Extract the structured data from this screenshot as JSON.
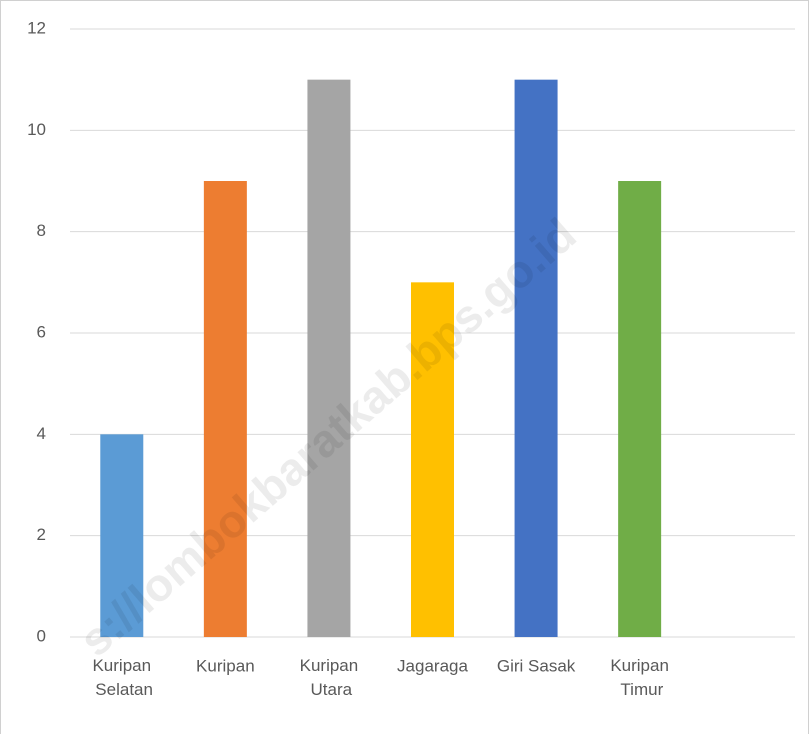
{
  "chart_data": {
    "type": "bar",
    "categories": [
      "Kuripan Selatan",
      "Kuripan",
      "Kuripan Utara",
      "Jagaraga",
      "Giri Sasak",
      "Kuripan Timur",
      null
    ],
    "values": [
      4,
      9,
      11,
      7,
      11,
      9,
      null
    ],
    "colors": [
      "#5b9bd5",
      "#ed7d31",
      "#a5a5a5",
      "#ffc000",
      "#4472c4",
      "#70ad47",
      null
    ],
    "ylim": [
      0,
      12
    ],
    "yticks": [
      0,
      2,
      4,
      6,
      8,
      10,
      12
    ],
    "grid": true,
    "watermark": "s://lombokbaratkab.bps.go.id"
  }
}
